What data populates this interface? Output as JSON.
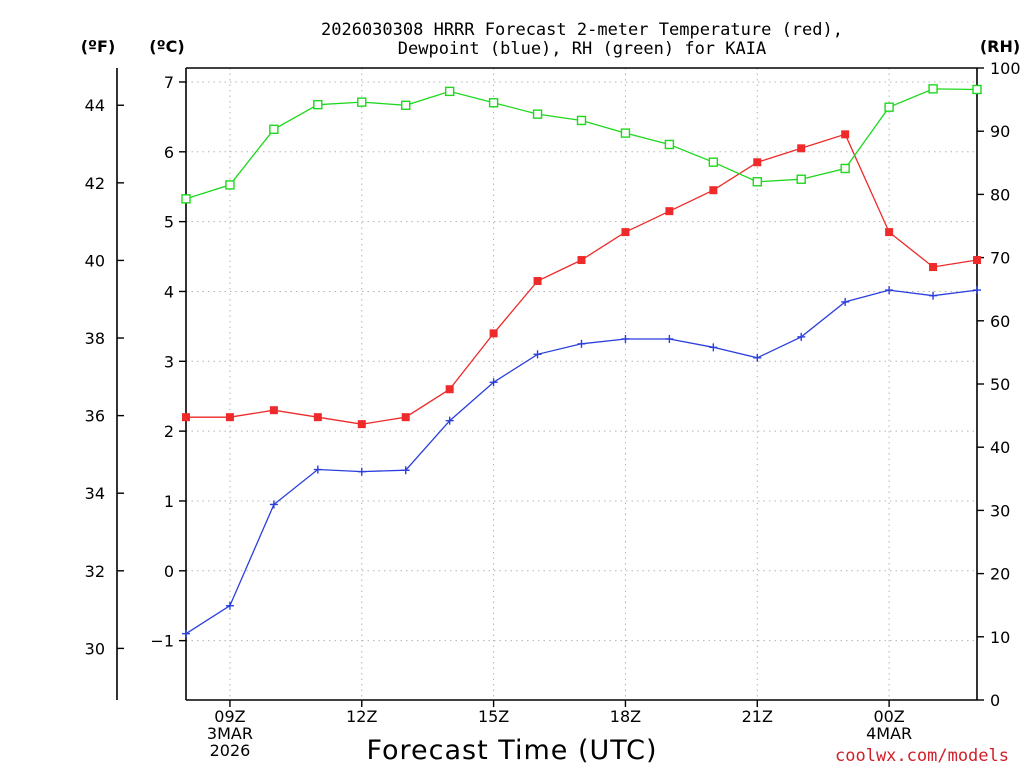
{
  "chart_data": {
    "type": "line",
    "title_line1": "2026030308 HRRR Forecast 2-meter Temperature (red),",
    "title_line2": "Dewpoint (blue), RH (green) for KAIA",
    "xlabel": "Forecast Time (UTC)",
    "units": {
      "fahrenheit": "(ºF)",
      "celsius": "(ºC)",
      "rh": "(RH)"
    },
    "credit": "coolwx.com/models",
    "x_hours": [
      8,
      9,
      10,
      11,
      12,
      13,
      14,
      15,
      16,
      17,
      18,
      19,
      20,
      21,
      22,
      23,
      24,
      25,
      26
    ],
    "x_range": [
      8,
      26
    ],
    "celsius_axis": {
      "range": [
        -1.85,
        7.2
      ],
      "ticks": [
        -1,
        0,
        1,
        2,
        3,
        4,
        5,
        6,
        7
      ],
      "tick_labels": [
        "−1",
        "0",
        "1",
        "2",
        "3",
        "4",
        "5",
        "6",
        "7"
      ]
    },
    "fahrenheit_axis": {
      "ticks": [
        30,
        32,
        34,
        36,
        38,
        40,
        42,
        44
      ],
      "tick_labels": [
        "30",
        "32",
        "34",
        "36",
        "38",
        "40",
        "42",
        "44"
      ]
    },
    "rh_axis": {
      "range": [
        0,
        100
      ],
      "ticks": [
        0,
        10,
        20,
        30,
        40,
        50,
        60,
        70,
        80,
        90,
        100
      ],
      "tick_labels": [
        "0",
        "10",
        "20",
        "30",
        "40",
        "50",
        "60",
        "70",
        "80",
        "90",
        "100"
      ]
    },
    "x_ticks": [
      {
        "hour": 9,
        "lines": [
          "09Z",
          "3MAR",
          "2026"
        ]
      },
      {
        "hour": 12,
        "lines": [
          "12Z"
        ]
      },
      {
        "hour": 15,
        "lines": [
          "15Z"
        ]
      },
      {
        "hour": 18,
        "lines": [
          "18Z"
        ]
      },
      {
        "hour": 21,
        "lines": [
          "21Z"
        ]
      },
      {
        "hour": 24,
        "lines": [
          "00Z",
          "4MAR"
        ]
      }
    ],
    "series": [
      {
        "name": "Temperature",
        "axis": "celsius",
        "color": "#ee2a2a",
        "marker": "filled-square",
        "values": [
          2.2,
          2.2,
          2.3,
          2.2,
          2.1,
          2.2,
          2.6,
          3.4,
          4.15,
          4.45,
          4.85,
          5.15,
          5.45,
          5.85,
          6.05,
          6.25,
          4.85,
          4.35,
          4.45
        ]
      },
      {
        "name": "Dewpoint",
        "axis": "celsius",
        "color": "#2a3fdd",
        "marker": "plus",
        "values": [
          -0.9,
          -0.5,
          0.95,
          1.45,
          1.42,
          1.44,
          2.15,
          2.7,
          3.1,
          3.25,
          3.32,
          3.32,
          3.2,
          3.05,
          3.35,
          3.85,
          4.02,
          3.94,
          4.02
        ]
      },
      {
        "name": "RH",
        "axis": "rh",
        "color": "#1ed81e",
        "marker": "open-square",
        "values": [
          79.3,
          81.5,
          90.3,
          94.2,
          94.6,
          94.1,
          96.3,
          94.5,
          92.7,
          91.7,
          89.7,
          87.9,
          85.1,
          82.0,
          82.4,
          84.1,
          93.8,
          96.7,
          96.6
        ]
      }
    ]
  }
}
